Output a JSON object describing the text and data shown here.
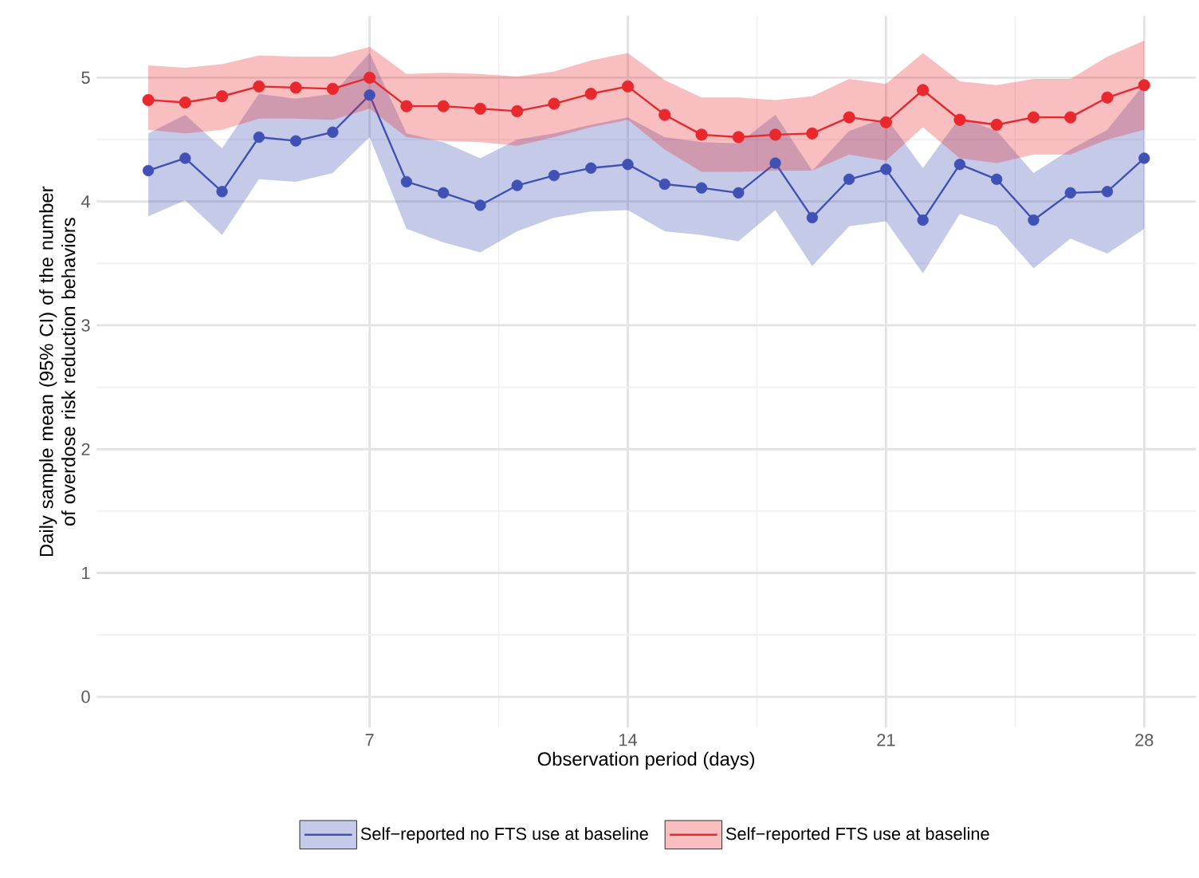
{
  "chart_data": {
    "type": "line",
    "xlabel": "Observation period (days)",
    "ylabel": "Daily sample mean (95% CI) of the number of overdose risk reduction behaviors",
    "x": [
      1,
      2,
      3,
      4,
      5,
      6,
      7,
      8,
      9,
      10,
      11,
      12,
      13,
      14,
      15,
      16,
      17,
      18,
      19,
      20,
      21,
      22,
      23,
      24,
      25,
      26,
      27,
      28
    ],
    "series": [
      {
        "name": "Self−reported no FTS use at baseline",
        "color": "#3f51b5",
        "values": [
          4.25,
          4.35,
          4.08,
          4.52,
          4.49,
          4.56,
          4.86,
          4.16,
          4.07,
          3.97,
          4.13,
          4.21,
          4.27,
          4.3,
          4.14,
          4.11,
          4.07,
          4.31,
          3.87,
          4.18,
          4.26,
          3.85,
          4.3,
          4.18,
          3.85,
          4.07,
          4.08,
          4.35
        ],
        "lower": [
          3.88,
          4.01,
          3.73,
          4.18,
          4.16,
          4.23,
          4.52,
          3.78,
          3.67,
          3.59,
          3.76,
          3.87,
          3.92,
          3.93,
          3.76,
          3.73,
          3.68,
          3.93,
          3.48,
          3.8,
          3.84,
          3.42,
          3.9,
          3.8,
          3.46,
          3.7,
          3.58,
          3.78
        ],
        "upper": [
          4.55,
          4.7,
          4.43,
          4.87,
          4.83,
          4.87,
          5.2,
          4.55,
          4.48,
          4.35,
          4.5,
          4.55,
          4.62,
          4.68,
          4.52,
          4.48,
          4.47,
          4.7,
          4.25,
          4.57,
          4.68,
          4.27,
          4.68,
          4.57,
          4.23,
          4.42,
          4.58,
          4.95
        ]
      },
      {
        "name": "Self−reported FTS use at baseline",
        "color": "#e8282d",
        "values": [
          4.82,
          4.8,
          4.85,
          4.93,
          4.92,
          4.91,
          5.0,
          4.77,
          4.77,
          4.75,
          4.73,
          4.79,
          4.87,
          4.93,
          4.7,
          4.54,
          4.52,
          4.54,
          4.55,
          4.68,
          4.64,
          4.9,
          4.66,
          4.62,
          4.68,
          4.68,
          4.84,
          4.94
        ],
        "lower": [
          4.58,
          4.55,
          4.58,
          4.67,
          4.67,
          4.66,
          4.75,
          4.52,
          4.49,
          4.48,
          4.45,
          4.52,
          4.6,
          4.66,
          4.42,
          4.24,
          4.24,
          4.25,
          4.25,
          4.38,
          4.33,
          4.6,
          4.35,
          4.31,
          4.38,
          4.38,
          4.5,
          4.58
        ],
        "upper": [
          5.1,
          5.08,
          5.11,
          5.18,
          5.17,
          5.17,
          5.25,
          5.03,
          5.04,
          5.03,
          5.01,
          5.05,
          5.14,
          5.2,
          4.98,
          4.84,
          4.84,
          4.82,
          4.85,
          4.99,
          4.95,
          5.2,
          4.97,
          4.94,
          4.99,
          4.99,
          5.17,
          5.3
        ]
      }
    ],
    "xlim": [
      -0.4,
      29.4
    ],
    "ylim": [
      -0.25,
      5.5
    ],
    "xticks": [
      7,
      14,
      21,
      28
    ],
    "yticks": [
      0,
      1,
      2,
      3,
      4,
      5
    ],
    "grid": true,
    "legend": "bottom",
    "marker": "circle",
    "line_style": "solid"
  }
}
